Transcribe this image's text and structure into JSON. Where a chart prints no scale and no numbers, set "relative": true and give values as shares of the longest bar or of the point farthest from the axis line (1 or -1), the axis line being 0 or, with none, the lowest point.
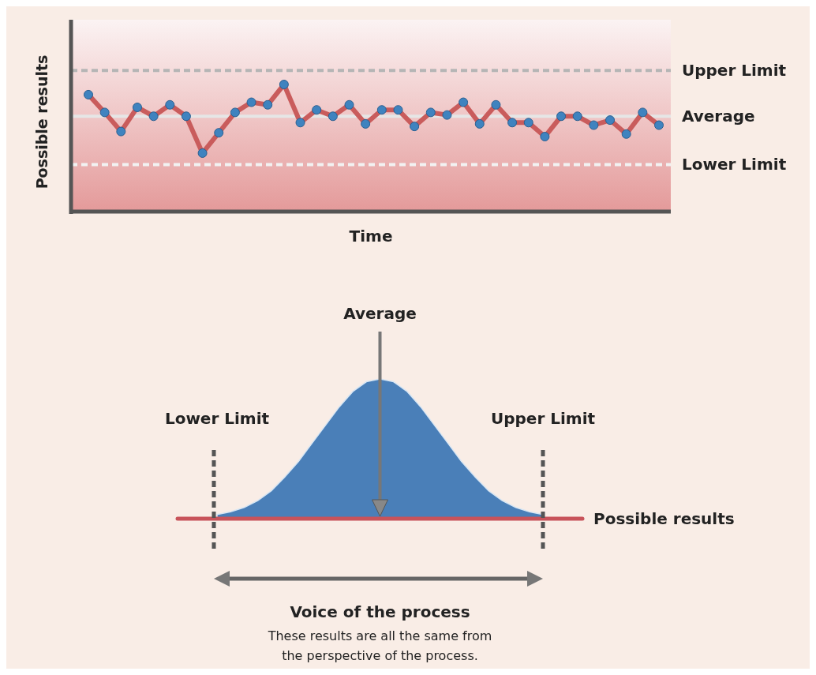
{
  "chart_data": [
    {
      "type": "line",
      "ylabel": "Possible results",
      "xlabel": "Time",
      "relative": true,
      "marker": "circle",
      "line_style": "solid",
      "categories": [
        null,
        null,
        null,
        null,
        null,
        null,
        null,
        null,
        null,
        null,
        null,
        null,
        null,
        null,
        null,
        null,
        null,
        null,
        null,
        null,
        null,
        null,
        null,
        null,
        null,
        null,
        null,
        null,
        null,
        null,
        null,
        null,
        null,
        null,
        null,
        null
      ],
      "series": [
        {
          "color": "#c95c5c",
          "values": [
            0.92,
            0.78,
            0.63,
            0.82,
            0.75,
            0.84,
            0.75,
            0.46,
            0.62,
            0.78,
            0.86,
            0.84,
            1,
            0.7,
            0.8,
            0.75,
            0.84,
            0.69,
            0.8,
            0.8,
            0.67,
            0.78,
            0.76,
            0.86,
            0.69,
            0.84,
            0.7,
            0.7,
            0.59,
            0.75,
            0.75,
            0.68,
            0.72,
            0.61,
            0.78,
            0.68
          ]
        }
      ],
      "ref_lines": [
        {
          "axis": "y",
          "value": 1.11,
          "label": "Upper Limit",
          "color": "#b5b5b5",
          "line_style": "dashed"
        },
        {
          "axis": "y",
          "value": 0.75,
          "label": "Average",
          "color": "#e6e6e6",
          "line_style": "solid"
        },
        {
          "axis": "y",
          "value": 0.37,
          "label": "Lower Limit",
          "color": "#f2f2f2",
          "line_style": "dashed"
        }
      ]
    },
    {
      "type": "area",
      "relative": true,
      "xlabel": "Possible results",
      "categories": [
        null,
        null,
        null,
        null,
        null,
        null,
        null,
        null,
        null,
        null,
        null,
        null,
        null,
        null,
        null,
        null,
        null,
        null,
        null,
        null,
        null,
        null,
        null,
        null,
        null
      ],
      "series": [
        {
          "color": "#4a7fb8",
          "values": [
            0.03,
            0.05,
            0.08,
            0.13,
            0.2,
            0.3,
            0.41,
            0.54,
            0.67,
            0.8,
            0.91,
            0.98,
            1,
            0.98,
            0.91,
            0.8,
            0.67,
            0.54,
            0.41,
            0.3,
            0.2,
            0.13,
            0.08,
            0.05,
            0.03
          ]
        }
      ],
      "annotations": [
        "Average",
        "Lower Limit",
        "Upper Limit",
        "Voice of the process",
        "These results are all the same from the perspective of the process."
      ]
    }
  ]
}
